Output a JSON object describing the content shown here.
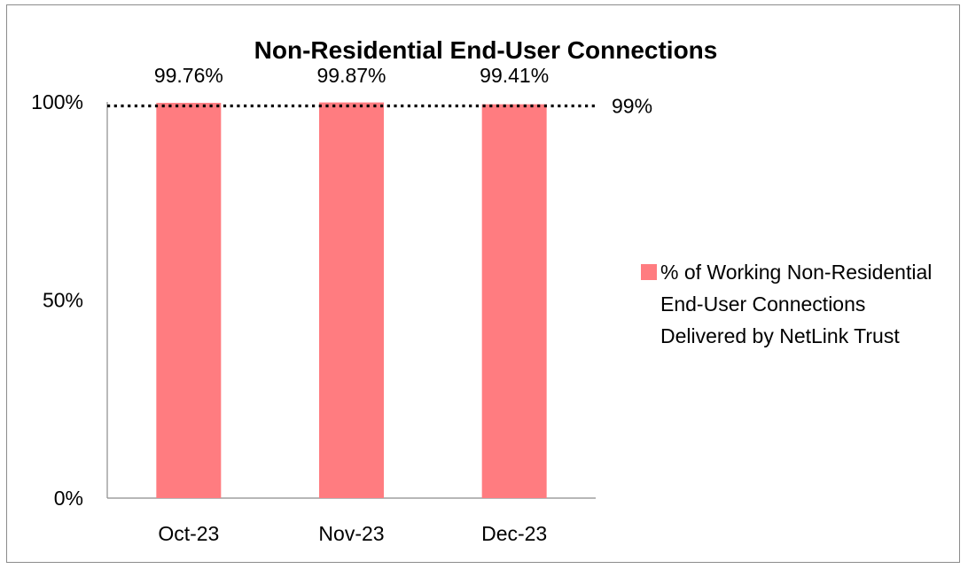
{
  "chart_data": {
    "type": "bar",
    "title": "Non-Residential End-User Connections",
    "categories": [
      "Oct-23",
      "Nov-23",
      "Dec-23"
    ],
    "series": [
      {
        "name": "% of Working Non-Residential End-User Connections Delivered by NetLink Trust",
        "values": [
          99.76,
          99.87,
          99.41
        ],
        "data_labels": [
          "99.76%",
          "99.87%",
          "99.41%"
        ],
        "color": "#ff7c80"
      }
    ],
    "ylim": [
      0,
      100
    ],
    "yticks": [
      0,
      50,
      100
    ],
    "ytick_labels": [
      "0%",
      "50%",
      "100%"
    ],
    "reference_line": {
      "value": 99,
      "label": "99%",
      "style": "dotted",
      "color": "#000000"
    },
    "grid": false,
    "legend": "right",
    "xlabel": "",
    "ylabel": ""
  }
}
